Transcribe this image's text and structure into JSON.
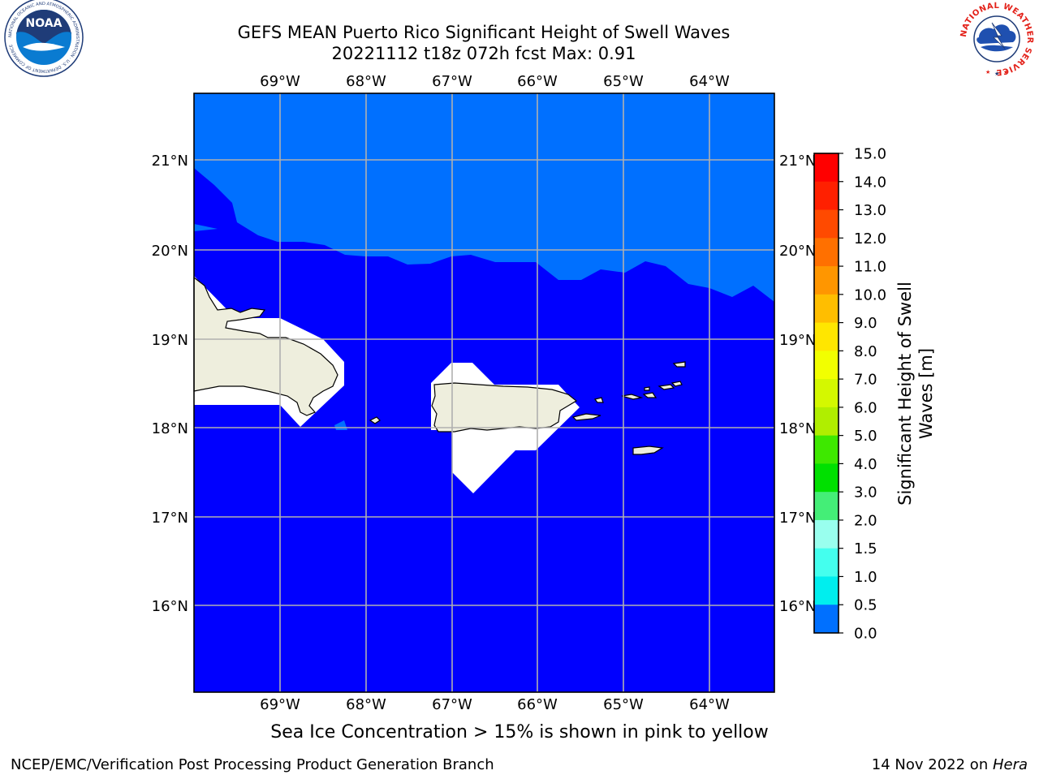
{
  "header": {
    "title_line1": "GEFS MEAN Puerto Rico Significant Height of Swell Waves",
    "title_line2": "20221112 t18z 072h fcst   Max: 0.91"
  },
  "map": {
    "lon_labels": [
      "69°W",
      "68°W",
      "67°W",
      "66°W",
      "65°W",
      "64°W"
    ],
    "lat_labels": [
      "21°N",
      "20°N",
      "19°N",
      "18°N",
      "17°N",
      "16°N"
    ],
    "lon_range": [
      -70.0,
      -63.25
    ],
    "lat_range": [
      15.0,
      21.75
    ],
    "colors": {
      "swell_0_0p5": "#0000ff",
      "swell_0p5_1p0": "#0070ff",
      "land": "#eeeedd",
      "mask": "#ffffff",
      "grid": "#b0b0b0"
    }
  },
  "colorbar": {
    "label": "Significant Height of Swell Waves [m]",
    "ticks": [
      "15.0",
      "14.0",
      "13.0",
      "12.0",
      "11.0",
      "10.0",
      "9.0",
      "8.0",
      "7.0",
      "6.0",
      "5.0",
      "4.0",
      "3.0",
      "2.0",
      "1.5",
      "1.0",
      "0.5",
      "0.0"
    ],
    "band_colors": [
      "#ff0000",
      "#ff2000",
      "#ff4a00",
      "#ff7000",
      "#ff9600",
      "#ffbe00",
      "#ffe600",
      "#f2ff00",
      "#d4f800",
      "#b0ee00",
      "#3ee800",
      "#00e000",
      "#44ee77",
      "#99ffee",
      "#44ffee",
      "#00eeee",
      "#0070ff",
      "#0000ff"
    ]
  },
  "logos": {
    "noaa_text": "NOAA",
    "noaa_ring": "NATIONAL OCEANIC AND ATMOSPHERIC ADMINISTRATION · U.S. DEPARTMENT OF COMMERCE",
    "nws_ring": "NATIONAL WEATHER SERVICE"
  },
  "footer": {
    "sea_ice_note": "Sea Ice Concentration > 15% is shown in pink to yellow",
    "left": "NCEP/EMC/Verification Post Processing Product Generation Branch",
    "date": "14 Nov 2022 on ",
    "machine": "Hera"
  }
}
